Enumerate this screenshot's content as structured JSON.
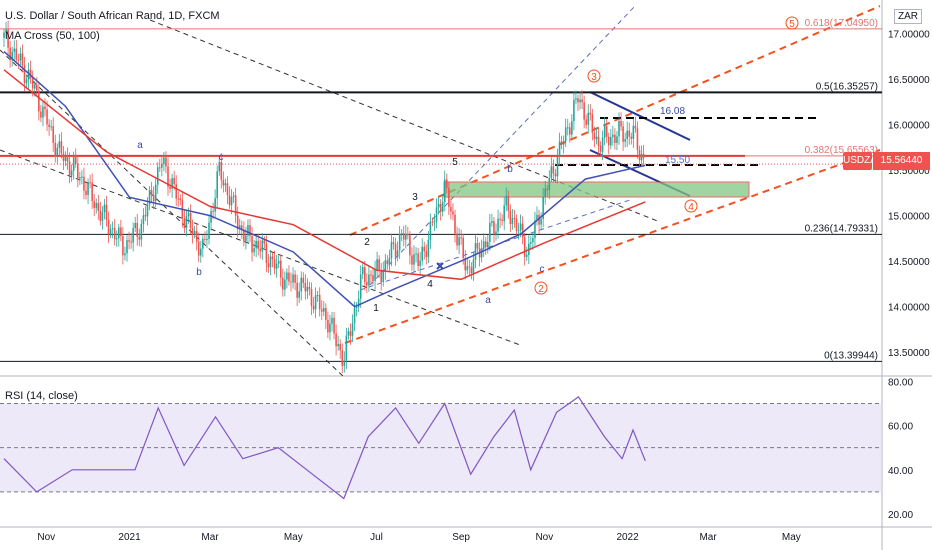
{
  "header": {
    "title": "U.S. Dollar / South African Rand, 1D, FXCM",
    "indicator": "MA Cross (50, 100)",
    "rsi_label": "RSI (14, close)",
    "currency_button": "ZAR",
    "symbol_badge": "USDZAR",
    "price_badge": "15.56440"
  },
  "colors": {
    "up_candle": "#26a69a",
    "down_candle": "#ef5350",
    "ma_fast": "#3f51b5",
    "ma_slow": "#e53935",
    "fib_line": "#e57373",
    "channel_orange": "#f4511e",
    "zone_fill": "#81c784",
    "rsi_line": "#7e57c2",
    "rsi_band": "#e1dbf5"
  },
  "chart_data": [
    {
      "type": "line",
      "title": "U.S. Dollar / South African Rand, 1D, FXCM",
      "note_type": "candlestick",
      "x_ticks": [
        "Nov",
        "2021",
        "Mar",
        "May",
        "Jul",
        "Sep",
        "Nov",
        "2022",
        "Mar",
        "May"
      ],
      "ylim": [
        13.25,
        17.3
      ],
      "y_ticks": [
        "13.50000",
        "14.00000",
        "14.50000",
        "15.00000",
        "15.50000",
        "16.00000",
        "16.50000",
        "17.00000"
      ],
      "last_price": 15.5644,
      "close_path": [
        {
          "x": "2020-10-01",
          "y": 16.95
        },
        {
          "x": "2020-10-20",
          "y": 16.5
        },
        {
          "x": "2020-11-10",
          "y": 15.7
        },
        {
          "x": "2020-11-25",
          "y": 15.45
        },
        {
          "x": "2020-12-10",
          "y": 15.05
        },
        {
          "x": "2020-12-28",
          "y": 14.65
        },
        {
          "x": "2021-01-10",
          "y": 14.9
        },
        {
          "x": "2021-01-25",
          "y": 15.6
        },
        {
          "x": "2021-02-10",
          "y": 15.0
        },
        {
          "x": "2021-02-24",
          "y": 14.6
        },
        {
          "x": "2021-03-08",
          "y": 15.5
        },
        {
          "x": "2021-03-25",
          "y": 14.8
        },
        {
          "x": "2021-04-10",
          "y": 14.6
        },
        {
          "x": "2021-04-25",
          "y": 14.3
        },
        {
          "x": "2021-05-10",
          "y": 14.2
        },
        {
          "x": "2021-05-25",
          "y": 13.9
        },
        {
          "x": "2021-06-07",
          "y": 13.42
        },
        {
          "x": "2021-06-20",
          "y": 14.3
        },
        {
          "x": "2021-07-05",
          "y": 14.4
        },
        {
          "x": "2021-07-20",
          "y": 14.8
        },
        {
          "x": "2021-08-01",
          "y": 14.45
        },
        {
          "x": "2021-08-20",
          "y": 15.3
        },
        {
          "x": "2021-09-05",
          "y": 14.4
        },
        {
          "x": "2021-09-20",
          "y": 14.75
        },
        {
          "x": "2021-10-05",
          "y": 15.1
        },
        {
          "x": "2021-10-20",
          "y": 14.6
        },
        {
          "x": "2021-11-05",
          "y": 15.4
        },
        {
          "x": "2021-11-26",
          "y": 16.3
        },
        {
          "x": "2021-12-10",
          "y": 15.8
        },
        {
          "x": "2021-12-25",
          "y": 15.9
        },
        {
          "x": "2022-01-05",
          "y": 15.9
        },
        {
          "x": "2022-01-14",
          "y": 15.56
        }
      ],
      "series": [
        {
          "name": "MA 50",
          "values": [
            {
              "x": "2020-10-01",
              "y": 16.8
            },
            {
              "x": "2020-11-15",
              "y": 16.2
            },
            {
              "x": "2021-01-01",
              "y": 15.2
            },
            {
              "x": "2021-03-01",
              "y": 15.0
            },
            {
              "x": "2021-05-01",
              "y": 14.6
            },
            {
              "x": "2021-06-15",
              "y": 14.0
            },
            {
              "x": "2021-07-15",
              "y": 14.2
            },
            {
              "x": "2021-09-01",
              "y": 14.5
            },
            {
              "x": "2021-10-15",
              "y": 14.8
            },
            {
              "x": "2021-12-01",
              "y": 15.4
            },
            {
              "x": "2022-01-14",
              "y": 15.55
            }
          ]
        },
        {
          "name": "MA 100",
          "values": [
            {
              "x": "2020-10-01",
              "y": 16.6
            },
            {
              "x": "2020-12-15",
              "y": 15.7
            },
            {
              "x": "2021-03-01",
              "y": 15.1
            },
            {
              "x": "2021-05-01",
              "y": 14.9
            },
            {
              "x": "2021-07-01",
              "y": 14.4
            },
            {
              "x": "2021-09-01",
              "y": 14.3
            },
            {
              "x": "2021-11-01",
              "y": 14.7
            },
            {
              "x": "2022-01-14",
              "y": 15.15
            }
          ]
        }
      ],
      "fib_levels": [
        {
          "label": "0.618(17.04950)",
          "value": 17.0495
        },
        {
          "label": "0.5(16.35257)",
          "value": 16.35257
        },
        {
          "label": "0.382(15.65563)",
          "value": 15.65563
        },
        {
          "label": "0.236(14.79331)",
          "value": 14.79331
        },
        {
          "label": "0(13.39944)",
          "value": 13.39944
        }
      ],
      "level_labels": [
        "16.08",
        "15.50"
      ],
      "wave_labels": [
        "a",
        "b",
        "c",
        "a",
        "b",
        "c",
        "1",
        "2",
        "3",
        "4",
        "5",
        "2",
        "3",
        "4",
        "5"
      ]
    },
    {
      "type": "line",
      "title": "RSI (14, close)",
      "ylim": [
        15,
        82
      ],
      "y_ticks": [
        "20.00",
        "40.00",
        "60.00",
        "80.00"
      ],
      "bands": [
        30,
        50,
        70
      ],
      "values": [
        {
          "x": "2020-10-01",
          "y": 45
        },
        {
          "x": "2020-10-25",
          "y": 30
        },
        {
          "x": "2020-11-20",
          "y": 40
        },
        {
          "x": "2021-01-05",
          "y": 40
        },
        {
          "x": "2021-01-22",
          "y": 68
        },
        {
          "x": "2021-02-10",
          "y": 42
        },
        {
          "x": "2021-03-05",
          "y": 64
        },
        {
          "x": "2021-03-25",
          "y": 45
        },
        {
          "x": "2021-04-20",
          "y": 50
        },
        {
          "x": "2021-05-15",
          "y": 38
        },
        {
          "x": "2021-06-07",
          "y": 27
        },
        {
          "x": "2021-06-25",
          "y": 55
        },
        {
          "x": "2021-07-15",
          "y": 68
        },
        {
          "x": "2021-08-01",
          "y": 52
        },
        {
          "x": "2021-08-20",
          "y": 70
        },
        {
          "x": "2021-09-08",
          "y": 38
        },
        {
          "x": "2021-09-25",
          "y": 55
        },
        {
          "x": "2021-10-10",
          "y": 67
        },
        {
          "x": "2021-10-22",
          "y": 40
        },
        {
          "x": "2021-11-10",
          "y": 66
        },
        {
          "x": "2021-11-26",
          "y": 73
        },
        {
          "x": "2021-12-15",
          "y": 55
        },
        {
          "x": "2021-12-28",
          "y": 45
        },
        {
          "x": "2022-01-05",
          "y": 58
        },
        {
          "x": "2022-01-14",
          "y": 44
        }
      ]
    }
  ]
}
